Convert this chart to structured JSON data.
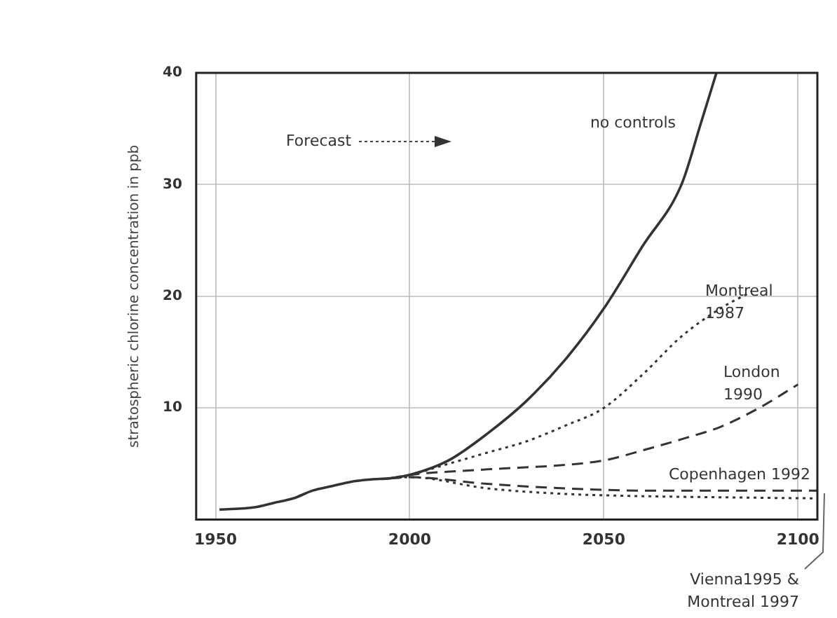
{
  "chart_data": {
    "type": "line",
    "ylabel": "stratospheric chlorine concentration in ppb",
    "annotations": [
      "Forecast"
    ],
    "xlim": [
      1945,
      2105
    ],
    "xticks": [
      1950,
      2000,
      2050,
      2100
    ],
    "ylim": [
      0,
      40
    ],
    "yticks": [
      10,
      20,
      30,
      40
    ],
    "grid": true,
    "legend": false,
    "marker": "none",
    "series": [
      {
        "name": "no controls",
        "color": "#333333",
        "line_style": "solid",
        "x": [
          1951,
          1960,
          1965,
          1970,
          1975,
          1980,
          1985,
          1990,
          1995,
          2000,
          2010,
          2020,
          2030,
          2040,
          2050,
          2060,
          2070,
          2075,
          2079
        ],
        "values": [
          0.9,
          1.1,
          1.5,
          1.9,
          2.6,
          3.0,
          3.4,
          3.6,
          3.7,
          4.0,
          5.3,
          7.7,
          10.6,
          14.3,
          18.9,
          24.5,
          30,
          35.5,
          40
        ]
      },
      {
        "name": "Montreal 1987",
        "color": "#333333",
        "line_style": "dotted",
        "x": [
          1995,
          2000,
          2010,
          2020,
          2030,
          2040,
          2050,
          2060,
          2070,
          2080,
          2088
        ],
        "values": [
          3.7,
          4.0,
          5.0,
          6.0,
          7.0,
          8.4,
          10,
          13,
          16.4,
          18.9,
          20.4
        ]
      },
      {
        "name": "London 1990",
        "color": "#333333",
        "line_style": "dashed",
        "x": [
          1995,
          2000,
          2020,
          2040,
          2050,
          2060,
          2070,
          2080,
          2090,
          2100
        ],
        "values": [
          3.7,
          4.0,
          4.5,
          4.9,
          5.3,
          6.2,
          7.2,
          8.3,
          10,
          12.1
        ]
      },
      {
        "name": "Copenhagen 1992",
        "color": "#333333",
        "line_style": "dashed",
        "x": [
          1995,
          2000,
          2020,
          2040,
          2060,
          2080,
          2105
        ],
        "values": [
          3.7,
          3.8,
          3.2,
          2.8,
          2.6,
          2.6,
          2.6
        ]
      },
      {
        "name": "Vienna1995 & Montreal 1997",
        "color": "#333333",
        "line_style": "dotted",
        "x": [
          1995,
          2000,
          2020,
          2040,
          2060,
          2080,
          2105
        ],
        "values": [
          3.7,
          3.8,
          2.8,
          2.3,
          2.1,
          2.0,
          1.9
        ]
      }
    ]
  }
}
